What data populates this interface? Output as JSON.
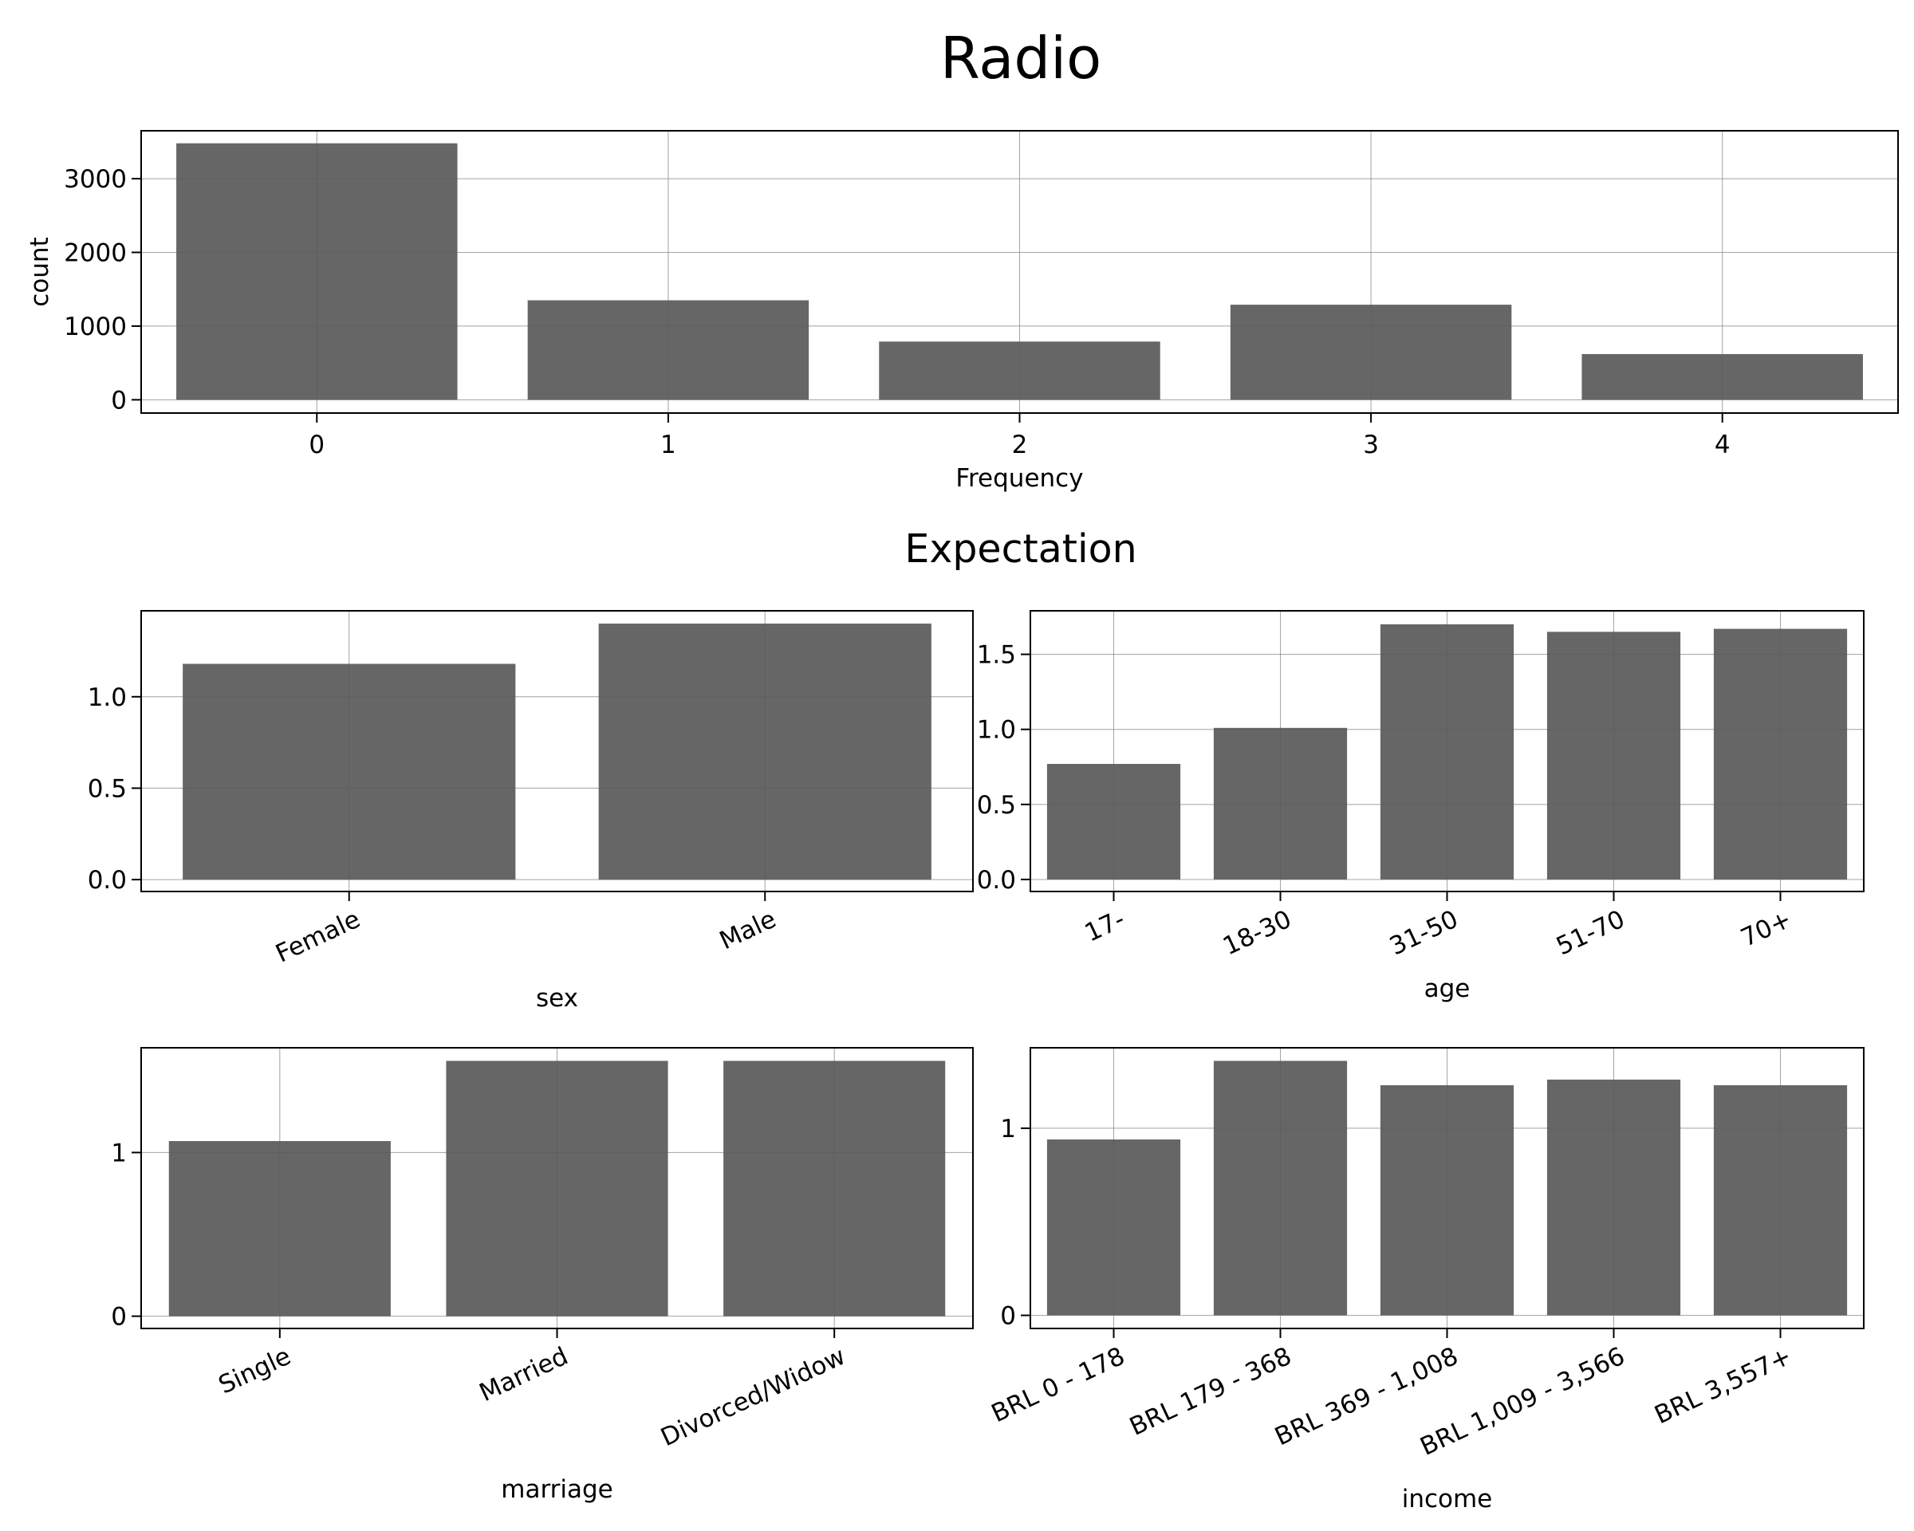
{
  "suptitle": "Radio",
  "section_title": "Expectation",
  "chart_data": [
    {
      "id": "frequency",
      "type": "bar",
      "categories": [
        "0",
        "1",
        "2",
        "3",
        "4"
      ],
      "values": [
        3480,
        1350,
        790,
        1290,
        620
      ],
      "xlabel": "Frequency",
      "ylabel": "count",
      "ylim": [
        -180,
        3650
      ],
      "yticks": [
        0,
        1000,
        2000,
        3000
      ],
      "ytick_labels": [
        "0",
        "1000",
        "2000",
        "3000"
      ],
      "xtick_rotation": 0,
      "grid": true,
      "bar_color": "#666666"
    },
    {
      "id": "sex",
      "type": "bar",
      "categories": [
        "Female",
        "Male"
      ],
      "values": [
        1.18,
        1.4
      ],
      "xlabel": "sex",
      "ylabel": "",
      "ylim": [
        -0.065,
        1.47
      ],
      "yticks": [
        0.0,
        0.5,
        1.0
      ],
      "ytick_labels": [
        "0.0",
        "0.5",
        "1.0"
      ],
      "xtick_rotation": -25,
      "grid": true,
      "bar_color": "#666666"
    },
    {
      "id": "age",
      "type": "bar",
      "categories": [
        "17-",
        "18-30",
        "31-50",
        "51-70",
        "70+"
      ],
      "values": [
        0.77,
        1.01,
        1.7,
        1.65,
        1.67
      ],
      "xlabel": "age",
      "ylabel": "",
      "ylim": [
        -0.08,
        1.79
      ],
      "yticks": [
        0.0,
        0.5,
        1.0,
        1.5
      ],
      "ytick_labels": [
        "0.0",
        "0.5",
        "1.0",
        "1.5"
      ],
      "xtick_rotation": -25,
      "grid": true,
      "bar_color": "#666666"
    },
    {
      "id": "marriage",
      "type": "bar",
      "categories": [
        "Single",
        "Married",
        "Divorced/Widow"
      ],
      "values": [
        1.07,
        1.56,
        1.56
      ],
      "xlabel": "marriage",
      "ylabel": "",
      "ylim": [
        -0.075,
        1.64
      ],
      "yticks": [
        0,
        1
      ],
      "ytick_labels": [
        "0",
        "1"
      ],
      "xtick_rotation": -25,
      "grid": true,
      "bar_color": "#666666"
    },
    {
      "id": "income",
      "type": "bar",
      "categories": [
        "BRL 0 - 178",
        "BRL 179 - 368",
        "BRL 369 - 1,008",
        "BRL 1,009 - 3,566",
        "BRL 3,557+"
      ],
      "values": [
        0.94,
        1.36,
        1.23,
        1.26,
        1.23
      ],
      "xlabel": "income",
      "ylabel": "",
      "ylim": [
        -0.07,
        1.43
      ],
      "yticks": [
        0,
        1
      ],
      "ytick_labels": [
        "0",
        "1"
      ],
      "xtick_rotation": -25,
      "grid": true,
      "bar_color": "#666666"
    }
  ]
}
